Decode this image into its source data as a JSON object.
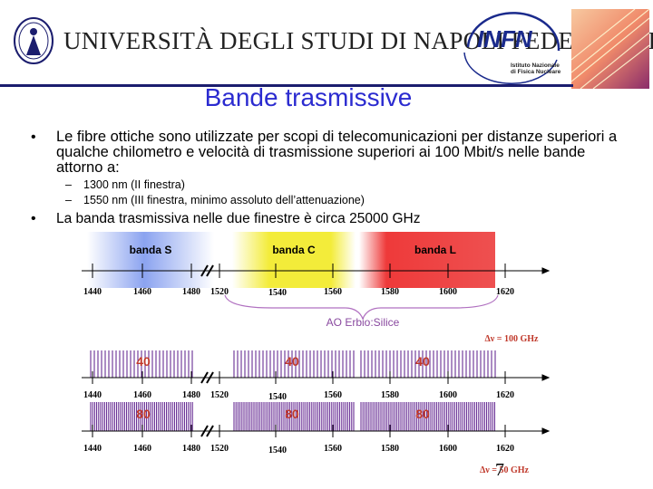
{
  "header": {
    "university": "UNIVERSITÀ DEGLI STUDI DI NAPOLI FEDERICO II",
    "infn": "INFN",
    "infn_subtitle_line1": "Istituto Nazionale",
    "infn_subtitle_line2": "di Fisica Nucleare"
  },
  "slide": {
    "title": "Bande trasmissive",
    "bullet1": "Le fibre ottiche sono utilizzate per scopi di telecomunicazioni per distanze superiori a qualche chilometro e velocità di trasmissione superiori ai 100 Mbit/s nelle bande attorno a:",
    "sub1": "1300 nm (II finestra)",
    "sub2": "1550 nm (III finestra, minimo assoluto dell’attenuazione)",
    "bullet2": "La banda trasmissiva nelle due finestre è circa 25000 GHz",
    "page": "7"
  },
  "figure": {
    "bands": [
      "banda S",
      "banda C",
      "banda L"
    ],
    "axis_ticks": [
      "1440",
      "1460",
      "1480",
      "1520",
      "1540",
      "1560",
      "1580",
      "1600",
      "1620"
    ],
    "amp_label": "AO Erbio:Silice",
    "grid1_label": "Δν = 100 GHz",
    "grid2_label": "Δν = 50 GHz",
    "channels_row1": [
      "40",
      "40",
      "40"
    ],
    "channels_row2": [
      "80",
      "80",
      "80"
    ],
    "colors": {
      "band_s": "#6f8ee8",
      "band_c": "#f3ec3a",
      "band_l": "#ee3a3a",
      "channel": "#5a1a8a",
      "accent": "#c0392b"
    }
  }
}
